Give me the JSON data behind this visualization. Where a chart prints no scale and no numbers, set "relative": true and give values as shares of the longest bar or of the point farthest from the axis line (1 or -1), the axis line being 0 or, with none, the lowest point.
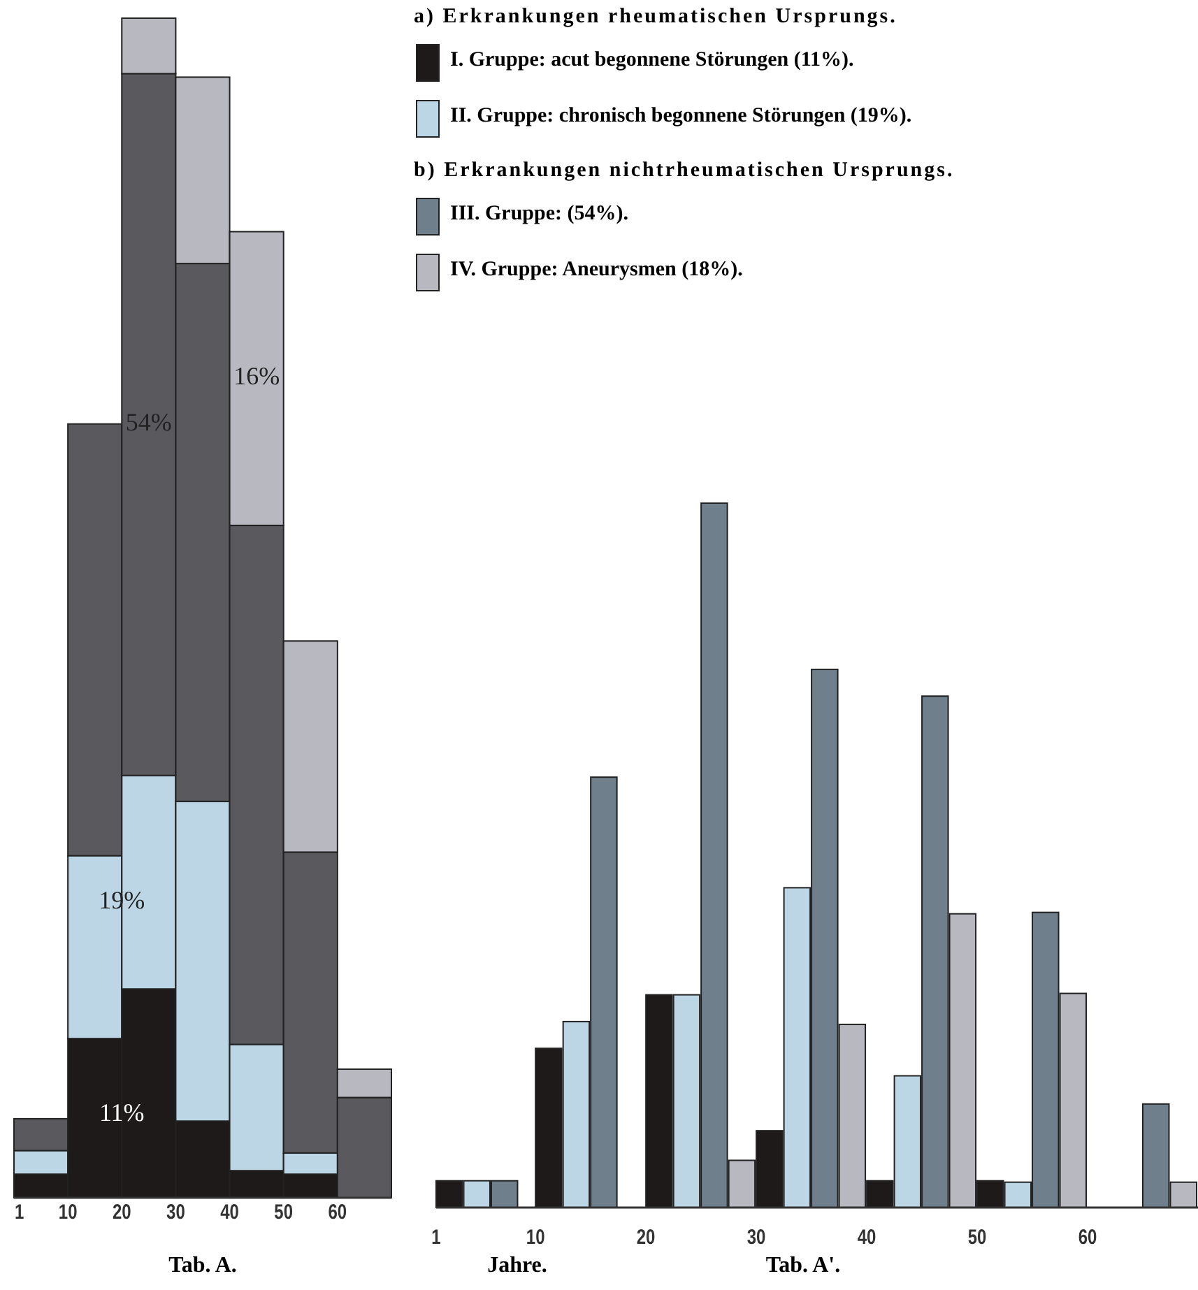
{
  "chart_data": [
    {
      "type": "bar",
      "title": "Tab. A.",
      "stacked": true,
      "relative": true,
      "x": [
        5,
        15,
        25,
        35,
        45,
        55,
        65
      ],
      "xlim": [
        0,
        70
      ],
      "xticks": [
        1,
        10,
        20,
        30,
        40,
        50,
        60
      ],
      "series": [
        {
          "color": "#1e1a1a",
          "values": [
            0.02,
            0.135,
            0.177,
            0.065,
            0.023,
            0.02,
            0
          ]
        },
        {
          "color": "#bcd6e6",
          "values": [
            0.02,
            0.155,
            0.181,
            0.271,
            0.107,
            0.018,
            0
          ]
        },
        {
          "color": "#5a5a5e",
          "values": [
            0.027,
            0.366,
            0.595,
            0.456,
            0.44,
            0.255,
            0.085
          ]
        },
        {
          "color": "#b8b8c0",
          "values": [
            0,
            0,
            0.047,
            0.158,
            0.249,
            0.179,
            0.024
          ]
        }
      ],
      "annotations": [
        {
          "text": "11%",
          "x": 20,
          "y": 0.07
        },
        {
          "text": "19%",
          "x": 20,
          "y": 0.25
        },
        "54%",
        "16%"
      ]
    },
    {
      "type": "bar",
      "title": "Tab. A'.",
      "xlabel": "Jahre.",
      "relative": true,
      "legend": "top",
      "x": [
        5,
        15,
        25,
        35,
        45,
        55,
        65
      ],
      "xlim": [
        1,
        70
      ],
      "xticks": [
        1,
        10,
        20,
        30,
        40,
        50,
        60
      ],
      "series": [
        {
          "name": "I. Gruppe: acut begonnene Störungen (11%).",
          "color": "#1e1a1a",
          "values": [
            0.038,
            0.226,
            0.302,
            0.109,
            0.038,
            0.038,
            0
          ]
        },
        {
          "name": "II. Gruppe: chronisch begonnene Störungen (19%).",
          "color": "#bcd6e6",
          "values": [
            0.038,
            0.264,
            0.302,
            0.454,
            0.187,
            0.036,
            0
          ]
        },
        {
          "name": "III. Gruppe: (54%).",
          "color": "#6f7f8c",
          "values": [
            0.038,
            0.611,
            1,
            0.764,
            0.726,
            0.419,
            0.147
          ]
        },
        {
          "name": "IV. Gruppe: Aneurysmen (18%).",
          "color": "#b8b8c0",
          "values": [
            0,
            0,
            0.067,
            0.26,
            0.417,
            0.304,
            0.036
          ]
        }
      ],
      "annotations": [
        "a) Erkrankungen rheumatischen Ursprungs.",
        "b) Erkrankungen nichtrheumatischen Ursprungs."
      ]
    }
  ]
}
